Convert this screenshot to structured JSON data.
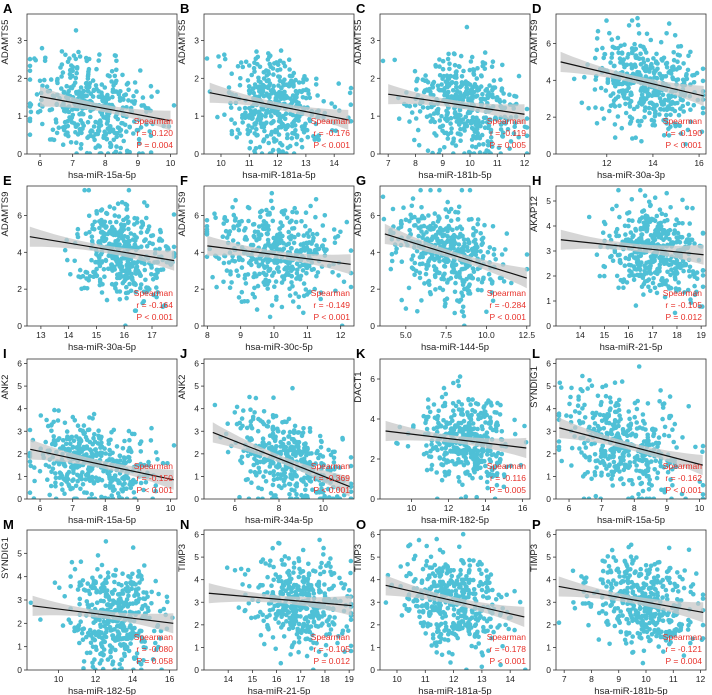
{
  "colors": {
    "point": "#4fc0d6",
    "line": "#111111",
    "band": "#c8c8c8",
    "stats": "#e8312a"
  },
  "stat_method": "Spearman",
  "chart_data": [
    {
      "letter": "A",
      "type": "scatter",
      "ylabel": "ADAMTS5",
      "xlabel": "hsa-miR-15a-5p",
      "xlim": [
        5.6,
        10.2
      ],
      "ylim": [
        0,
        3.7
      ],
      "xticks": [
        6,
        7,
        8,
        9,
        10
      ],
      "yticks": [
        0,
        1,
        2,
        3
      ],
      "fit": [
        [
          6.0,
          1.52
        ],
        [
          10.0,
          0.88
        ]
      ],
      "r_label": "r = -0.120",
      "p_label": "P = 0.004",
      "mu_x": 7.6,
      "sd_x": 0.9,
      "mu_y": 1.2,
      "sd_y": 0.75
    },
    {
      "letter": "B",
      "type": "scatter",
      "ylabel": "ADAMTS5",
      "xlabel": "hsa-miR-181a-5p",
      "xlim": [
        9.4,
        14.7
      ],
      "ylim": [
        0,
        3.7
      ],
      "xticks": [
        10,
        11,
        12,
        13,
        14
      ],
      "yticks": [
        0,
        1,
        2,
        3
      ],
      "fit": [
        [
          9.6,
          1.62
        ],
        [
          14.5,
          0.9
        ]
      ],
      "r_label": "r = -0.176",
      "p_label": "P < 0.001",
      "mu_x": 12.0,
      "sd_x": 0.9,
      "mu_y": 1.2,
      "sd_y": 0.75
    },
    {
      "letter": "C",
      "type": "scatter",
      "ylabel": "ADAMTS5",
      "xlabel": "hsa-miR-181b-5p",
      "xlim": [
        6.7,
        12.2
      ],
      "ylim": [
        0,
        3.7
      ],
      "xticks": [
        7,
        8,
        9,
        10,
        11,
        12
      ],
      "yticks": [
        0,
        1,
        2,
        3
      ],
      "fit": [
        [
          7.0,
          1.58
        ],
        [
          12.0,
          1.05
        ]
      ],
      "r_label": "r = -0.119",
      "p_label": "P = 0.005",
      "mu_x": 9.8,
      "sd_x": 0.95,
      "mu_y": 1.2,
      "sd_y": 0.75
    },
    {
      "letter": "D",
      "type": "scatter",
      "ylabel": "ADAMTS9",
      "xlabel": "hsa-miR-30a-3p",
      "xlim": [
        9.8,
        16.3
      ],
      "ylim": [
        0,
        7.6
      ],
      "xticks": [
        12,
        14,
        16
      ],
      "yticks": [
        0,
        2,
        4,
        6
      ],
      "fit": [
        [
          10.0,
          5.0
        ],
        [
          16.2,
          3.15
        ]
      ],
      "r_label": "r = -0.190",
      "p_label": "P < 0.001",
      "mu_x": 13.8,
      "sd_x": 1.1,
      "mu_y": 3.9,
      "sd_y": 1.5
    },
    {
      "letter": "E",
      "type": "scatter",
      "ylabel": "ADAMTS9",
      "xlabel": "hsa-miR-30a-5p",
      "xlim": [
        12.5,
        17.9
      ],
      "ylim": [
        0,
        7.6
      ],
      "xticks": [
        13,
        14,
        15,
        16,
        17
      ],
      "yticks": [
        0,
        2,
        4,
        6
      ],
      "fit": [
        [
          12.6,
          4.85
        ],
        [
          17.8,
          3.55
        ]
      ],
      "r_label": "r = -0.164",
      "p_label": "P < 0.001",
      "mu_x": 16.0,
      "sd_x": 0.8,
      "mu_y": 3.9,
      "sd_y": 1.5
    },
    {
      "letter": "F",
      "type": "scatter",
      "ylabel": "ADAMTS9",
      "xlabel": "hsa-miR-30c-5p",
      "xlim": [
        7.9,
        12.4
      ],
      "ylim": [
        0,
        7.6
      ],
      "xticks": [
        8,
        9,
        10,
        11,
        12
      ],
      "yticks": [
        0,
        2,
        4,
        6
      ],
      "fit": [
        [
          8.0,
          4.35
        ],
        [
          12.3,
          3.35
        ]
      ],
      "r_label": "r = -0.149",
      "p_label": "P < 0.001",
      "mu_x": 10.0,
      "sd_x": 0.9,
      "mu_y": 3.9,
      "sd_y": 1.5
    },
    {
      "letter": "G",
      "type": "scatter",
      "ylabel": "ADAMTS9",
      "xlabel": "hsa-miR-144-5p",
      "xlim": [
        3.4,
        12.7
      ],
      "ylim": [
        0,
        7.6
      ],
      "xticks": [
        5.0,
        7.5,
        10.0,
        12.5
      ],
      "yticks": [
        0,
        2,
        4,
        6
      ],
      "fit": [
        [
          3.7,
          5.0
        ],
        [
          12.5,
          2.6
        ]
      ],
      "r_label": "r = -0.284",
      "p_label": "P < 0.001",
      "mu_x": 7.5,
      "sd_x": 1.6,
      "mu_y": 3.9,
      "sd_y": 1.5
    },
    {
      "letter": "H",
      "type": "scatter",
      "ylabel": "AKAP12",
      "xlabel": "hsa-miR-21-5p",
      "xlim": [
        13.0,
        19.2
      ],
      "ylim": [
        0,
        5.6
      ],
      "xticks": [
        14,
        15,
        16,
        17,
        18,
        19
      ],
      "yticks": [
        0,
        1,
        2,
        3,
        4,
        5
      ],
      "fit": [
        [
          13.2,
          3.45
        ],
        [
          19.1,
          2.85
        ]
      ],
      "r_label": "r = -0.105",
      "p_label": "P = 0.012",
      "mu_x": 17.0,
      "sd_x": 1.0,
      "mu_y": 2.8,
      "sd_y": 1.1
    },
    {
      "letter": "I",
      "type": "scatter",
      "ylabel": "ANK2",
      "xlabel": "hsa-miR-15a-5p",
      "xlim": [
        5.6,
        10.2
      ],
      "ylim": [
        0,
        6.2
      ],
      "xticks": [
        6,
        7,
        8,
        9,
        10
      ],
      "yticks": [
        0,
        1,
        2,
        3,
        4,
        5,
        6
      ],
      "fit": [
        [
          5.7,
          2.2
        ],
        [
          10.1,
          0.85
        ]
      ],
      "r_label": "r = -0.150",
      "p_label": "P < 0.001",
      "mu_x": 7.6,
      "sd_x": 0.9,
      "mu_y": 1.6,
      "sd_y": 1.1
    },
    {
      "letter": "J",
      "type": "scatter",
      "ylabel": "ANK2",
      "xlabel": "hsa-miR-34a-5p",
      "xlim": [
        4.6,
        11.4
      ],
      "ylim": [
        0,
        6.2
      ],
      "xticks": [
        6,
        8,
        10
      ],
      "yticks": [
        0,
        1,
        2,
        3,
        4,
        5,
        6
      ],
      "fit": [
        [
          5.0,
          2.95
        ],
        [
          11.2,
          0.55
        ]
      ],
      "r_label": "r = -0.369",
      "p_label": "P < 0.001",
      "mu_x": 8.5,
      "sd_x": 1.3,
      "mu_y": 1.6,
      "sd_y": 1.1
    },
    {
      "letter": "K",
      "type": "scatter",
      "ylabel": "DACT1",
      "xlabel": "hsa-miR-182-5p",
      "xlim": [
        8.3,
        16.4
      ],
      "ylim": [
        0,
        7.0
      ],
      "xticks": [
        10,
        12,
        14,
        16
      ],
      "yticks": [
        0,
        2,
        4,
        6
      ],
      "fit": [
        [
          8.6,
          3.4
        ],
        [
          16.2,
          2.55
        ]
      ],
      "r_label": "r = -0.116",
      "p_label": "P = 0.005",
      "mu_x": 13.0,
      "sd_x": 1.2,
      "mu_y": 3.0,
      "sd_y": 1.2
    },
    {
      "letter": "L",
      "type": "scatter",
      "ylabel": "SYNDIG1",
      "xlabel": "hsa-miR-15a-5p",
      "xlim": [
        5.6,
        10.2
      ],
      "ylim": [
        0,
        6.2
      ],
      "xticks": [
        6,
        7,
        8,
        9,
        10
      ],
      "yticks": [
        0,
        1,
        2,
        3,
        4,
        5,
        6
      ],
      "fit": [
        [
          5.7,
          3.15
        ],
        [
          10.1,
          1.5
        ]
      ],
      "r_label": "r = -0.162",
      "p_label": "P < 0.001",
      "mu_x": 7.6,
      "sd_x": 0.9,
      "mu_y": 2.0,
      "sd_y": 1.3
    },
    {
      "letter": "M",
      "type": "scatter",
      "ylabel": "SYNDIG1",
      "xlabel": "hsa-miR-182-5p",
      "xlim": [
        8.3,
        16.4
      ],
      "ylim": [
        0,
        6.0
      ],
      "xticks": [
        10,
        12,
        14,
        16
      ],
      "yticks": [
        0,
        1,
        2,
        3,
        4,
        5
      ],
      "fit": [
        [
          8.6,
          2.75
        ],
        [
          16.2,
          2.0
        ]
      ],
      "r_label": "r = -0.080",
      "p_label": "P = 0.058",
      "mu_x": 13.0,
      "sd_x": 1.2,
      "mu_y": 2.0,
      "sd_y": 1.3
    },
    {
      "letter": "N",
      "type": "scatter",
      "ylabel": "TIMP3",
      "xlabel": "hsa-miR-21-5p",
      "xlim": [
        13.0,
        19.2
      ],
      "ylim": [
        0,
        6.2
      ],
      "xticks": [
        14,
        15,
        16,
        17,
        18,
        19
      ],
      "yticks": [
        0,
        1,
        2,
        3,
        4,
        5,
        6
      ],
      "fit": [
        [
          13.2,
          3.4
        ],
        [
          19.1,
          2.85
        ]
      ],
      "r_label": "r = -0.105",
      "p_label": "P = 0.012",
      "mu_x": 17.0,
      "sd_x": 1.0,
      "mu_y": 2.9,
      "sd_y": 1.2
    },
    {
      "letter": "O",
      "type": "scatter",
      "ylabel": "TIMP3",
      "xlabel": "hsa-miR-181a-5p",
      "xlim": [
        9.4,
        14.7
      ],
      "ylim": [
        0,
        6.2
      ],
      "xticks": [
        10,
        11,
        12,
        13,
        14
      ],
      "yticks": [
        0,
        1,
        2,
        3,
        4,
        5,
        6
      ],
      "fit": [
        [
          9.6,
          3.75
        ],
        [
          14.5,
          2.35
        ]
      ],
      "r_label": "r = -0.178",
      "p_label": "P < 0.001",
      "mu_x": 12.0,
      "sd_x": 0.9,
      "mu_y": 2.9,
      "sd_y": 1.2
    },
    {
      "letter": "P",
      "type": "scatter",
      "ylabel": "TIMP3",
      "xlabel": "hsa-miR-181b-5p",
      "xlim": [
        6.7,
        12.2
      ],
      "ylim": [
        0,
        6.2
      ],
      "xticks": [
        7,
        8,
        9,
        10,
        11,
        12
      ],
      "yticks": [
        0,
        1,
        2,
        3,
        4,
        5,
        6
      ],
      "fit": [
        [
          6.8,
          3.7
        ],
        [
          12.1,
          2.55
        ]
      ],
      "r_label": "r = -0.121",
      "p_label": "P = 0.004",
      "mu_x": 9.8,
      "sd_x": 0.95,
      "mu_y": 2.9,
      "sd_y": 1.2
    }
  ]
}
